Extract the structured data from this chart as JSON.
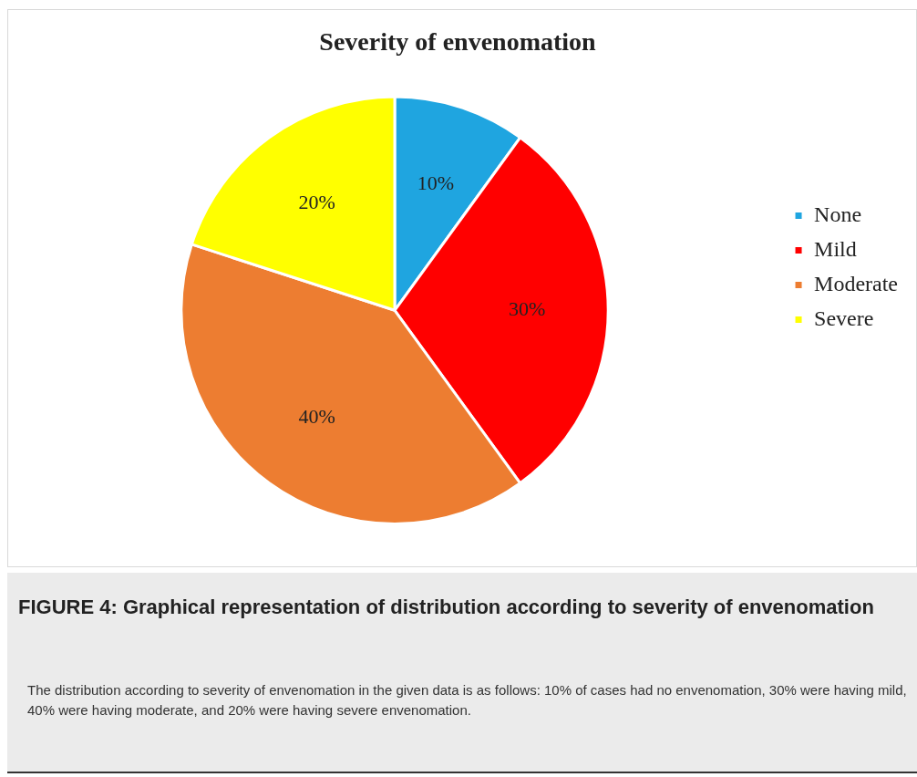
{
  "chart_data": {
    "type": "pie",
    "title": "Severity of envenomation",
    "categories": [
      "None",
      "Mild",
      "Moderate",
      "Severe"
    ],
    "values": [
      10,
      30,
      40,
      20
    ],
    "colors": [
      "#1fa5e0",
      "#ff0000",
      "#ed7d31",
      "#ffff00"
    ],
    "value_labels": [
      "10%",
      "30%",
      "40%",
      "20%"
    ],
    "legend": "right",
    "annotations": [
      "FIGURE 4: Graphical representation of distribution according to severity of envenomation",
      "The distribution according to severity of envenomation in the given data is as follows: 10% of cases had no envenomation, 30% were having mild, 40% were having moderate, and 20% were having severe envenomation."
    ]
  }
}
